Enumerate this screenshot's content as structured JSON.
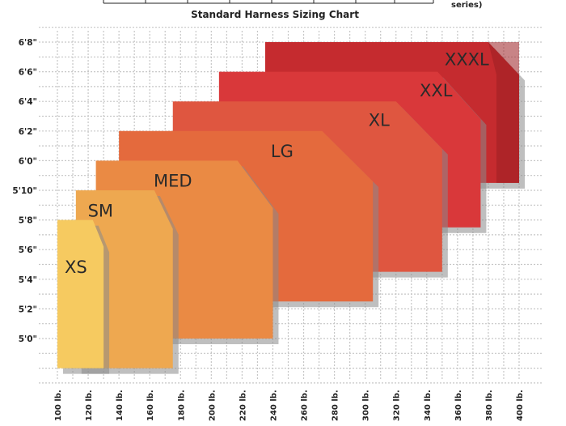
{
  "header_cropped": {
    "text": "series)"
  },
  "chart_data": {
    "type": "area",
    "title": "Standard Harness Sizing Chart",
    "x_axis": {
      "unit": "lb.",
      "ticks": [
        "100 lb.",
        "120 lb.",
        "140 lb.",
        "160 lb.",
        "180 lb.",
        "200 lb.",
        "220 lb.",
        "240 lb.",
        "260 lb.",
        "280 lb.",
        "300 lb.",
        "320 lb.",
        "340 lb.",
        "360 lb.",
        "380 lb.",
        "400 lb."
      ]
    },
    "y_axis": {
      "ticks": [
        "5'0\"",
        "5'2\"",
        "5'4\"",
        "5'6\"",
        "5'8\"",
        "5'10\"",
        "6'0\"",
        "6'2\"",
        "6'4\"",
        "6'6\"",
        "6'8\""
      ]
    },
    "grid": true,
    "sizes": [
      {
        "name": "XXXL",
        "weight_min": 235,
        "weight_max": 400,
        "height_min_in": 70.5,
        "height_max_in": 80,
        "corner_weight": 20,
        "corner_height_in": 2.2,
        "color": "#c52b2f"
      },
      {
        "name": "XXL",
        "weight_min": 205,
        "weight_max": 375,
        "height_min_in": 67.5,
        "height_max_in": 78,
        "corner_weight": 28,
        "corner_height_in": 3.2,
        "color": "#d9383a"
      },
      {
        "name": "XL",
        "weight_min": 175,
        "weight_max": 350,
        "height_min_in": 64.5,
        "height_max_in": 76,
        "corner_weight": 30,
        "corner_height_in": 3.2,
        "color": "#df5640"
      },
      {
        "name": "LG",
        "weight_min": 140,
        "weight_max": 305,
        "height_min_in": 62.5,
        "height_max_in": 74,
        "corner_weight": 33,
        "corner_height_in": 3.4,
        "color": "#e46a3d"
      },
      {
        "name": "MED",
        "weight_min": 125,
        "weight_max": 240,
        "height_min_in": 60,
        "height_max_in": 72,
        "corner_weight": 23,
        "corner_height_in": 3.2,
        "color": "#ea8a44"
      },
      {
        "name": "SM",
        "weight_min": 112,
        "weight_max": 175,
        "height_min_in": 58,
        "height_max_in": 70,
        "corner_weight": 12,
        "corner_height_in": 2.6,
        "color": "#eea850"
      },
      {
        "name": "XS",
        "weight_min": 100,
        "weight_max": 130,
        "height_min_in": 58,
        "height_max_in": 68,
        "corner_weight": 7,
        "corner_height_in": 1.8,
        "color": "#f6ca60"
      }
    ]
  },
  "colors": {
    "grid": "#c6c6c6",
    "shadow": "#8a8a8a",
    "XXXL_dark": "#9a1f22"
  }
}
